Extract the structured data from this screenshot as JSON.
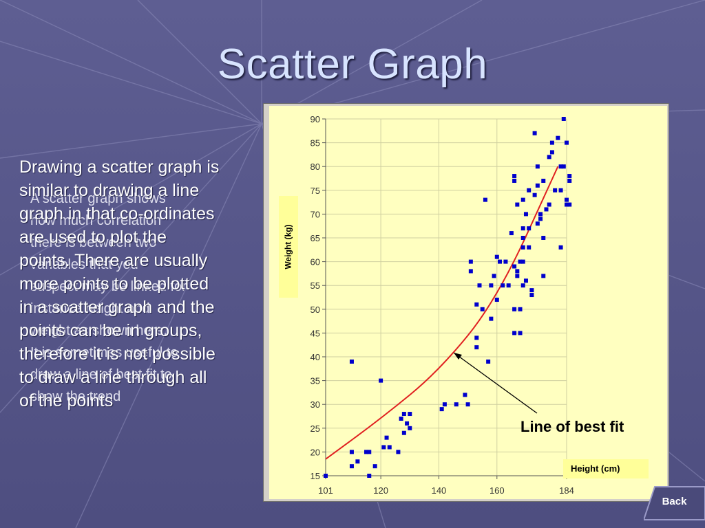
{
  "slide": {
    "title": "Scatter Graph",
    "main_text": "Drawing a scatter graph is\nsimilar to drawing a line\ngraph in that co-ordinates\nare used to plot the\npoints. There are usually\nmore points to be plotted\nin a scatter graph and the\npoints can be in groups,\ntherefore it is not possible\nto draw a line through all\nof the points",
    "overlay_text": "A scatter graph shows\nhow much correlation\nthere is between two\nvariables that you\nsuspect may be linked for\ninstance height and\nweight as shown here.\nIt is sometimes useful to\ndraw a line of best fit to\nshow the trend",
    "back_label": "Back",
    "annotation": "Line of best fit"
  },
  "colors": {
    "background": "#5a5a8c",
    "plot_area": "#ffffc0",
    "grid": "#cfcfa0",
    "points": "#0000cc",
    "trend": "#e02020"
  },
  "chart_data": {
    "type": "scatter",
    "title": "",
    "xlabel": "Height (cm)",
    "ylabel": "Weight (kg)",
    "xlim": [
      101,
      184
    ],
    "ylim": [
      15,
      90
    ],
    "x_ticks": [
      101,
      120,
      140,
      160,
      184
    ],
    "y_ticks": [
      15,
      20,
      25,
      30,
      35,
      40,
      45,
      50,
      55,
      60,
      65,
      70,
      75,
      80,
      85,
      90
    ],
    "grid": true,
    "points": [
      [
        101,
        15
      ],
      [
        110,
        39
      ],
      [
        110,
        20
      ],
      [
        110,
        17
      ],
      [
        112,
        18
      ],
      [
        115,
        20
      ],
      [
        116,
        20
      ],
      [
        116,
        15
      ],
      [
        118,
        17
      ],
      [
        120,
        35
      ],
      [
        121,
        21
      ],
      [
        122,
        23
      ],
      [
        123,
        21
      ],
      [
        126,
        20
      ],
      [
        127,
        27
      ],
      [
        128,
        24
      ],
      [
        128,
        28
      ],
      [
        129,
        26
      ],
      [
        130,
        28
      ],
      [
        130,
        25
      ],
      [
        141,
        29
      ],
      [
        142,
        30
      ],
      [
        146,
        30
      ],
      [
        149,
        32
      ],
      [
        150,
        30
      ],
      [
        151,
        60
      ],
      [
        151,
        58
      ],
      [
        153,
        44
      ],
      [
        153,
        42
      ],
      [
        153,
        51
      ],
      [
        154,
        55
      ],
      [
        155,
        50
      ],
      [
        156,
        73
      ],
      [
        157,
        39
      ],
      [
        158,
        55
      ],
      [
        158,
        48
      ],
      [
        159,
        57
      ],
      [
        160,
        61
      ],
      [
        160,
        52
      ],
      [
        161,
        60
      ],
      [
        162,
        55
      ],
      [
        163,
        60
      ],
      [
        164,
        55
      ],
      [
        165,
        66
      ],
      [
        166,
        45
      ],
      [
        166,
        50
      ],
      [
        166,
        59
      ],
      [
        166,
        77
      ],
      [
        166,
        78
      ],
      [
        167,
        72
      ],
      [
        167,
        57
      ],
      [
        167,
        58
      ],
      [
        168,
        45
      ],
      [
        168,
        50
      ],
      [
        168,
        60
      ],
      [
        169,
        55
      ],
      [
        169,
        63
      ],
      [
        169,
        67
      ],
      [
        169,
        73
      ],
      [
        169,
        65
      ],
      [
        169,
        60
      ],
      [
        170,
        56
      ],
      [
        170,
        70
      ],
      [
        171,
        75
      ],
      [
        171,
        63
      ],
      [
        171,
        67
      ],
      [
        172,
        54
      ],
      [
        172,
        53
      ],
      [
        173,
        74
      ],
      [
        173,
        87
      ],
      [
        174,
        80
      ],
      [
        174,
        76
      ],
      [
        174,
        68
      ],
      [
        175,
        69
      ],
      [
        175,
        70
      ],
      [
        176,
        77
      ],
      [
        176,
        57
      ],
      [
        176,
        65
      ],
      [
        177,
        71
      ],
      [
        178,
        72
      ],
      [
        178,
        82
      ],
      [
        179,
        83
      ],
      [
        179,
        85
      ],
      [
        180,
        75
      ],
      [
        181,
        86
      ],
      [
        182,
        75
      ],
      [
        182,
        63
      ],
      [
        182,
        80
      ],
      [
        183,
        90
      ],
      [
        183,
        80
      ],
      [
        184,
        73
      ],
      [
        184,
        72
      ],
      [
        184,
        85
      ],
      [
        185,
        78
      ],
      [
        185,
        77
      ],
      [
        185,
        72
      ]
    ],
    "trend_line": [
      [
        101,
        18.5
      ],
      [
        120,
        27
      ],
      [
        140,
        37
      ],
      [
        160,
        52
      ],
      [
        181,
        80
      ]
    ]
  }
}
